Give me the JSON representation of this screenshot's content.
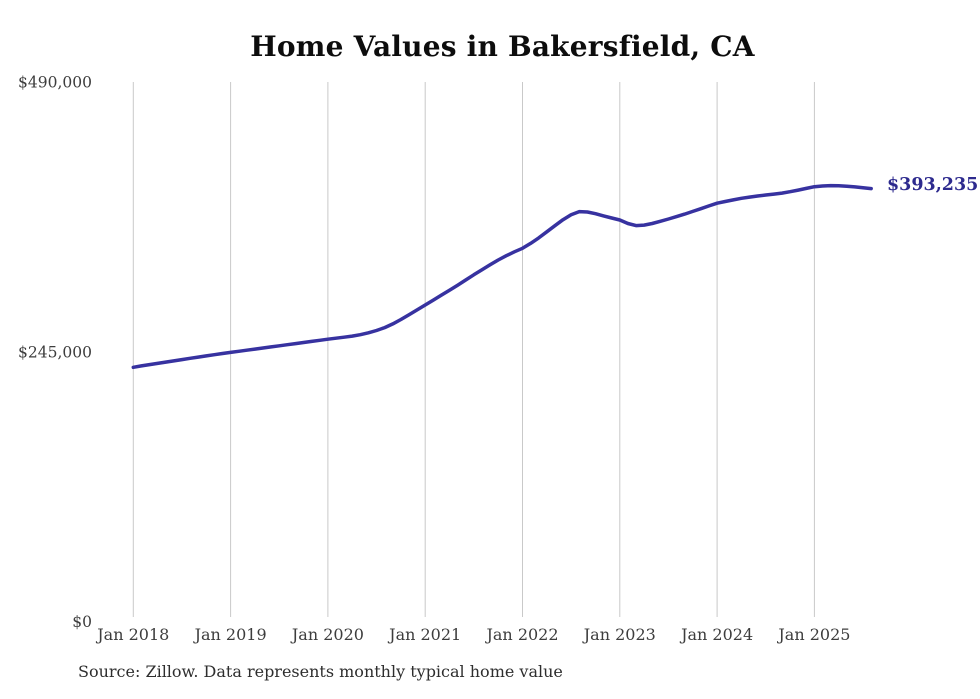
{
  "title": "Home Values in Bakersfield, CA",
  "source_note": "Source: Zillow. Data represents monthly typical home value",
  "end_label": "$393,235",
  "colors": {
    "line": "#3732a0",
    "end_label": "#2d2a8e",
    "grid": "#c9c9c9",
    "axis_text": "#3d3d3d",
    "title_text": "#0d0d0d",
    "source_text": "#2e2e2e",
    "background": "#ffffff"
  },
  "chart_data": {
    "type": "line",
    "title": "Home Values in Bakersfield, CA",
    "xlabel": "",
    "ylabel": "",
    "x_start": "2018-01",
    "x_end": "2025-08",
    "frequency": "monthly",
    "x_tick_labels": [
      "Jan 2018",
      "Jan 2019",
      "Jan 2020",
      "Jan 2021",
      "Jan 2022",
      "Jan 2023",
      "Jan 2024",
      "Jan 2025"
    ],
    "y_ticks": [
      {
        "value": 0,
        "label": "$0"
      },
      {
        "value": 245000,
        "label": "$245,000"
      },
      {
        "value": 490000,
        "label": "$490,000"
      }
    ],
    "ylim": [
      0,
      490000
    ],
    "grid": "vertical-only",
    "legend": "none",
    "final_value": 393235,
    "final_value_label": "$393,235",
    "series": [
      {
        "name": "Typical home value",
        "color": "#3732a0",
        "monthly_values": [
          231000,
          232200,
          233400,
          234500,
          235700,
          236800,
          238000,
          239100,
          240200,
          241300,
          242400,
          243500,
          244500,
          245500,
          246500,
          247500,
          248500,
          249500,
          250500,
          251500,
          252500,
          253500,
          254500,
          255500,
          256500,
          257400,
          258300,
          259300,
          260600,
          262300,
          264400,
          267000,
          270400,
          274400,
          278700,
          283100,
          287500,
          292000,
          296500,
          301000,
          305500,
          310200,
          315000,
          319500,
          324000,
          328400,
          332300,
          335800,
          339000,
          343500,
          348500,
          354000,
          359500,
          365000,
          369500,
          372300,
          372000,
          370400,
          368400,
          366500,
          364700,
          361500,
          359600,
          360100,
          361500,
          363500,
          365600,
          367800,
          370100,
          372500,
          375000,
          377500,
          380000,
          381500,
          383000,
          384400,
          385500,
          386500,
          387400,
          388200,
          389100,
          390400,
          391900,
          393400,
          394900,
          395600,
          395900,
          395800,
          395400,
          394800,
          394000,
          393235
        ]
      }
    ]
  }
}
